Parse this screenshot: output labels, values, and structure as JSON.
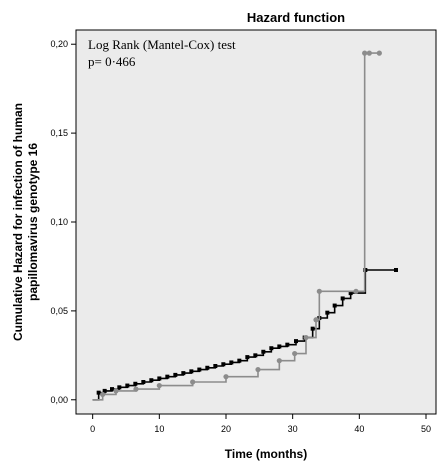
{
  "chart_data": {
    "type": "line",
    "title": "Hazard function",
    "xlabel": "Time (months)",
    "ylabel_lines": [
      "Cumulative Hazard for infection of human",
      "papillomavirus genotype 16"
    ],
    "xlim": [
      -2.5,
      51.5
    ],
    "ylim": [
      -0.008,
      0.208
    ],
    "x_ticks": [
      0,
      10,
      20,
      30,
      40,
      50
    ],
    "x_tick_labels": [
      "0",
      "10",
      "20",
      "30",
      "40",
      "50"
    ],
    "y_ticks": [
      0.0,
      0.05,
      0.1,
      0.15,
      0.2
    ],
    "y_tick_labels": [
      "0,00",
      "0,05",
      "0,10",
      "0,15",
      "0,20"
    ],
    "annotation_lines": [
      "Log Rank (Mantel-Cox) test",
      "p= 0·466"
    ],
    "grid": false,
    "plot_background": "#ebebeb",
    "series": [
      {
        "color": "#000000",
        "marker": "square",
        "x": [
          0,
          0.9,
          1.8,
          2.9,
          4.0,
          5.2,
          6.4,
          7.6,
          8.8,
          10.0,
          11.2,
          12.4,
          13.6,
          14.8,
          16.0,
          17.2,
          18.4,
          19.6,
          20.8,
          22.0,
          23.2,
          24.4,
          25.6,
          26.8,
          28.0,
          29.2,
          30.5,
          31.8,
          33.0,
          34.0,
          35.2,
          36.3,
          37.5,
          38.7,
          40.9,
          45.5
        ],
        "y": [
          0,
          0.004,
          0.005,
          0.006,
          0.007,
          0.008,
          0.009,
          0.01,
          0.011,
          0.012,
          0.013,
          0.014,
          0.015,
          0.016,
          0.017,
          0.018,
          0.019,
          0.02,
          0.021,
          0.022,
          0.024,
          0.025,
          0.027,
          0.029,
          0.03,
          0.031,
          0.033,
          0.035,
          0.04,
          0.046,
          0.049,
          0.053,
          0.057,
          0.06,
          0.073,
          0.073
        ]
      },
      {
        "color": "#8c8c8c",
        "marker": "circle",
        "x": [
          0,
          1.5,
          3.5,
          6.5,
          10.0,
          15.0,
          20.0,
          24.8,
          28.0,
          30.3,
          32.0,
          33.5,
          34.0,
          39.5,
          40.8,
          41.5,
          43.0
        ],
        "y": [
          0,
          0.003,
          0.005,
          0.006,
          0.008,
          0.01,
          0.013,
          0.017,
          0.022,
          0.026,
          0.035,
          0.045,
          0.061,
          0.061,
          0.195,
          0.195,
          0.195
        ]
      }
    ]
  }
}
